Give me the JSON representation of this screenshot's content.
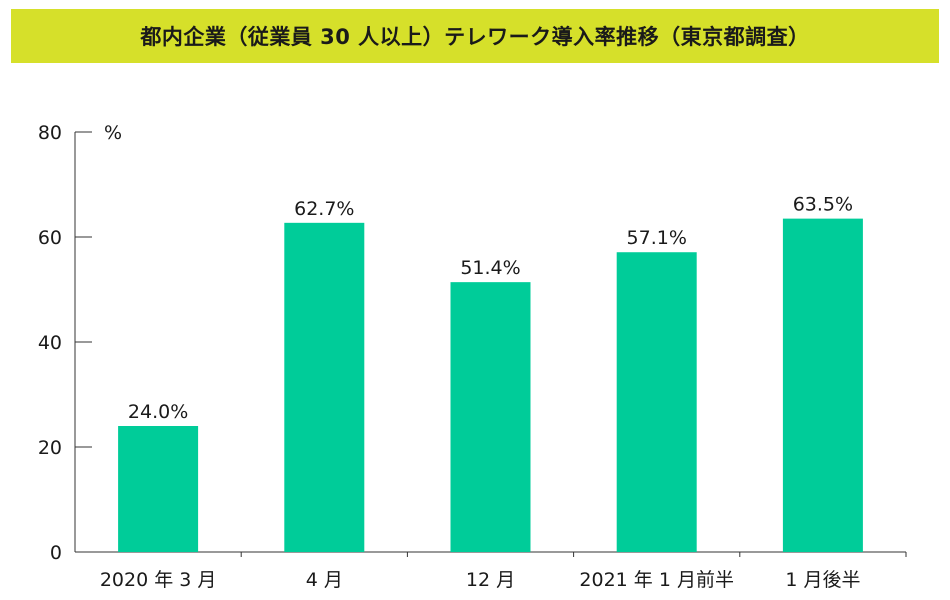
{
  "chart_data": {
    "type": "bar",
    "title": "都内企業（従業員 30 人以上）テレワーク導入率推移（東京都調査）",
    "categories": [
      "2020 年 3 月",
      "4 月",
      "12 月",
      "2021 年 1 月前半",
      "1 月後半"
    ],
    "values": [
      24.0,
      62.7,
      51.4,
      57.1,
      63.5
    ],
    "value_labels": [
      "24.0%",
      "62.7%",
      "51.4%",
      "57.1%",
      "63.5%"
    ],
    "ylabel": "%",
    "ylim": [
      0,
      80
    ],
    "yticks": [
      0,
      20,
      40,
      60,
      80
    ],
    "grid": false,
    "colors": {
      "bar": "#00cc99",
      "banner": "#d6e02a",
      "text": "#1a1a1a",
      "axis": "#333333"
    }
  }
}
